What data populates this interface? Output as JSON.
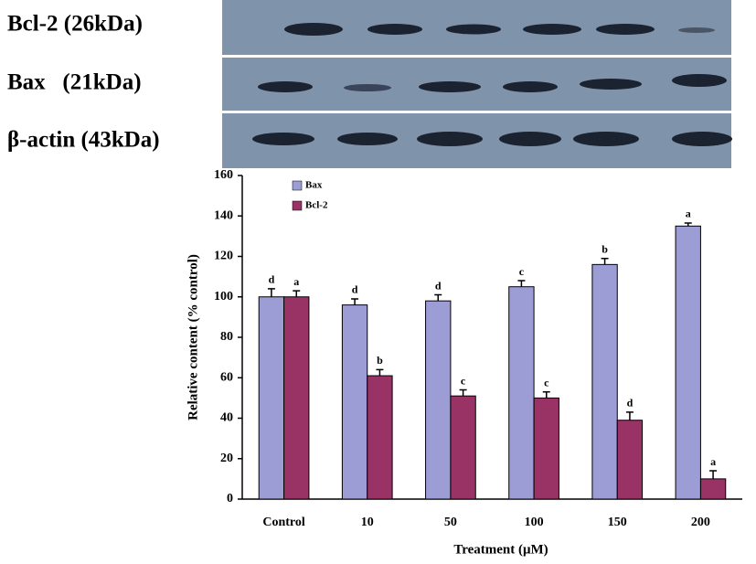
{
  "blot": {
    "labels": [
      "Bcl-2 (26kDa)",
      "Bax   (21kDa)",
      "β-actin (43kDa)"
    ]
  },
  "chart_data": {
    "type": "bar",
    "x_label": "Treatment (μM)",
    "y_label": "Relative content (% control)",
    "categories": [
      "Control",
      "10",
      "50",
      "100",
      "150",
      "200"
    ],
    "series": [
      {
        "name": "Bax",
        "color": "#9d9dd6",
        "values": [
          100,
          96,
          98,
          105,
          116,
          135
        ],
        "errors": [
          4,
          3,
          3,
          3,
          3,
          1.5
        ],
        "letters": [
          "d",
          "d",
          "d",
          "c",
          "b",
          "a"
        ]
      },
      {
        "name": "Bcl-2",
        "color": "#993366",
        "values": [
          100,
          61,
          51,
          50,
          39,
          10
        ],
        "errors": [
          3,
          3,
          3,
          3,
          4,
          4
        ],
        "letters": [
          "a",
          "b",
          "c",
          "c",
          "d",
          "a"
        ]
      }
    ],
    "ylim": [
      0,
      160
    ],
    "yticks": [
      0,
      20,
      40,
      60,
      80,
      100,
      120,
      140,
      160
    ],
    "grid": false,
    "legend": "top-left"
  }
}
